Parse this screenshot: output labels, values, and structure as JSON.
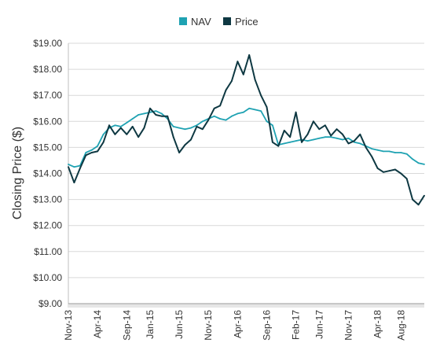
{
  "chart_data": {
    "type": "line",
    "ylabel": "Closing Price ($)",
    "ylim": [
      9,
      19
    ],
    "yticks": [
      "$9.00",
      "$10.00",
      "$11.00",
      "$12.00",
      "$13.00",
      "$14.00",
      "$15.00",
      "$16.00",
      "$17.00",
      "$18.00",
      "$19.00"
    ],
    "xlim": [
      "2013-11",
      "2018-12"
    ],
    "xticks": [
      {
        "label": "Nov-13",
        "month": "2013-11"
      },
      {
        "label": "Apr-14",
        "month": "2014-04"
      },
      {
        "label": "Sep-14",
        "month": "2014-09"
      },
      {
        "label": "Jan-15",
        "month": "2015-01"
      },
      {
        "label": "Jun-15",
        "month": "2015-06"
      },
      {
        "label": "Nov-15",
        "month": "2015-11"
      },
      {
        "label": "Apr-16",
        "month": "2016-04"
      },
      {
        "label": "Sep-16",
        "month": "2016-09"
      },
      {
        "label": "Feb-17",
        "month": "2017-02"
      },
      {
        "label": "Jun-17",
        "month": "2017-06"
      },
      {
        "label": "Nov-17",
        "month": "2017-11"
      },
      {
        "label": "Apr-18",
        "month": "2018-04"
      },
      {
        "label": "Aug-18",
        "month": "2018-08"
      }
    ],
    "legend_position": "top-center",
    "grid": "horizontal",
    "series": [
      {
        "name": "NAV",
        "color": "#1fa2b2",
        "points": [
          [
            "2013-11",
            14.35
          ],
          [
            "2013-12",
            14.25
          ],
          [
            "2014-01",
            14.3
          ],
          [
            "2014-02",
            14.8
          ],
          [
            "2014-03",
            14.9
          ],
          [
            "2014-04",
            15.05
          ],
          [
            "2014-05",
            15.5
          ],
          [
            "2014-06",
            15.75
          ],
          [
            "2014-07",
            15.85
          ],
          [
            "2014-08",
            15.8
          ],
          [
            "2014-09",
            15.95
          ],
          [
            "2014-10",
            16.1
          ],
          [
            "2014-11",
            16.25
          ],
          [
            "2014-12",
            16.3
          ],
          [
            "2015-01",
            16.35
          ],
          [
            "2015-02",
            16.4
          ],
          [
            "2015-03",
            16.3
          ],
          [
            "2015-04",
            16.1
          ],
          [
            "2015-05",
            15.8
          ],
          [
            "2015-06",
            15.75
          ],
          [
            "2015-07",
            15.7
          ],
          [
            "2015-08",
            15.75
          ],
          [
            "2015-09",
            15.85
          ],
          [
            "2015-10",
            16.0
          ],
          [
            "2015-11",
            16.1
          ],
          [
            "2015-12",
            16.2
          ],
          [
            "2016-01",
            16.1
          ],
          [
            "2016-02",
            16.05
          ],
          [
            "2016-03",
            16.2
          ],
          [
            "2016-04",
            16.3
          ],
          [
            "2016-05",
            16.35
          ],
          [
            "2016-06",
            16.5
          ],
          [
            "2016-07",
            16.45
          ],
          [
            "2016-08",
            16.4
          ],
          [
            "2016-09",
            16.0
          ],
          [
            "2016-10",
            15.85
          ],
          [
            "2016-11",
            15.1
          ],
          [
            "2016-12",
            15.15
          ],
          [
            "2017-01",
            15.2
          ],
          [
            "2017-02",
            15.25
          ],
          [
            "2017-03",
            15.3
          ],
          [
            "2017-04",
            15.25
          ],
          [
            "2017-05",
            15.3
          ],
          [
            "2017-06",
            15.35
          ],
          [
            "2017-07",
            15.4
          ],
          [
            "2017-08",
            15.4
          ],
          [
            "2017-09",
            15.35
          ],
          [
            "2017-10",
            15.3
          ],
          [
            "2017-11",
            15.35
          ],
          [
            "2017-12",
            15.2
          ],
          [
            "2018-01",
            15.15
          ],
          [
            "2018-02",
            15.05
          ],
          [
            "2018-03",
            14.95
          ],
          [
            "2018-04",
            14.9
          ],
          [
            "2018-05",
            14.85
          ],
          [
            "2018-06",
            14.85
          ],
          [
            "2018-07",
            14.8
          ],
          [
            "2018-08",
            14.8
          ],
          [
            "2018-09",
            14.75
          ],
          [
            "2018-10",
            14.55
          ],
          [
            "2018-11",
            14.4
          ],
          [
            "2018-12",
            14.35
          ]
        ]
      },
      {
        "name": "Price",
        "color": "#0e3842",
        "points": [
          [
            "2013-11",
            14.25
          ],
          [
            "2013-12",
            13.65
          ],
          [
            "2014-01",
            14.2
          ],
          [
            "2014-02",
            14.7
          ],
          [
            "2014-03",
            14.8
          ],
          [
            "2014-04",
            14.85
          ],
          [
            "2014-05",
            15.2
          ],
          [
            "2014-06",
            15.85
          ],
          [
            "2014-07",
            15.5
          ],
          [
            "2014-08",
            15.75
          ],
          [
            "2014-09",
            15.5
          ],
          [
            "2014-10",
            15.8
          ],
          [
            "2014-11",
            15.4
          ],
          [
            "2014-12",
            15.75
          ],
          [
            "2015-01",
            16.5
          ],
          [
            "2015-02",
            16.25
          ],
          [
            "2015-03",
            16.2
          ],
          [
            "2015-04",
            16.2
          ],
          [
            "2015-05",
            15.4
          ],
          [
            "2015-06",
            14.8
          ],
          [
            "2015-07",
            15.1
          ],
          [
            "2015-08",
            15.3
          ],
          [
            "2015-09",
            15.8
          ],
          [
            "2015-10",
            15.7
          ],
          [
            "2015-11",
            16.05
          ],
          [
            "2015-12",
            16.5
          ],
          [
            "2016-01",
            16.6
          ],
          [
            "2016-02",
            17.2
          ],
          [
            "2016-03",
            17.55
          ],
          [
            "2016-04",
            18.3
          ],
          [
            "2016-05",
            17.8
          ],
          [
            "2016-06",
            18.55
          ],
          [
            "2016-07",
            17.6
          ],
          [
            "2016-08",
            17.0
          ],
          [
            "2016-09",
            16.55
          ],
          [
            "2016-10",
            15.2
          ],
          [
            "2016-11",
            15.05
          ],
          [
            "2016-12",
            15.65
          ],
          [
            "2017-01",
            15.4
          ],
          [
            "2017-02",
            16.35
          ],
          [
            "2017-03",
            15.2
          ],
          [
            "2017-04",
            15.5
          ],
          [
            "2017-05",
            16.0
          ],
          [
            "2017-06",
            15.7
          ],
          [
            "2017-07",
            15.85
          ],
          [
            "2017-08",
            15.45
          ],
          [
            "2017-09",
            15.7
          ],
          [
            "2017-10",
            15.5
          ],
          [
            "2017-11",
            15.15
          ],
          [
            "2017-12",
            15.25
          ],
          [
            "2018-01",
            15.5
          ],
          [
            "2018-02",
            15.0
          ],
          [
            "2018-03",
            14.65
          ],
          [
            "2018-04",
            14.2
          ],
          [
            "2018-05",
            14.05
          ],
          [
            "2018-06",
            14.1
          ],
          [
            "2018-07",
            14.15
          ],
          [
            "2018-08",
            14.0
          ],
          [
            "2018-09",
            13.8
          ],
          [
            "2018-10",
            13.0
          ],
          [
            "2018-11",
            12.8
          ],
          [
            "2018-12",
            13.15
          ]
        ]
      }
    ]
  }
}
